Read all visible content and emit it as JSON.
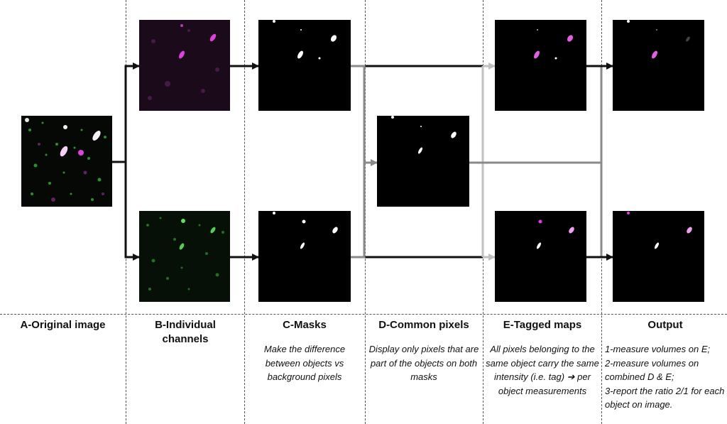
{
  "columns": [
    {
      "title": "A-Original image",
      "desc": ""
    },
    {
      "title": "B-Individual channels",
      "desc": ""
    },
    {
      "title": "C-Masks",
      "desc": "Make the difference between objects vs background pixels"
    },
    {
      "title": "D-Common pixels",
      "desc": "Display only pixels that are part of the objects on both masks"
    },
    {
      "title": "E-Tagged maps",
      "desc": "All pixels belonging to the same object carry the same intensity (i.e. tag) ➔ per object measurements"
    },
    {
      "title": "Output",
      "desc_lines": [
        "1-measure volumes on E;",
        "2-measure volumes on combined D & E;",
        "3-report the ratio 2/1 for each object on image."
      ]
    }
  ],
  "colors": {
    "magenta": "#e040e0",
    "green": "#38c038",
    "arrow_dark": "#111111",
    "arrow_gray": "#8a8a8a",
    "arrow_light": "#c0c0c0"
  }
}
